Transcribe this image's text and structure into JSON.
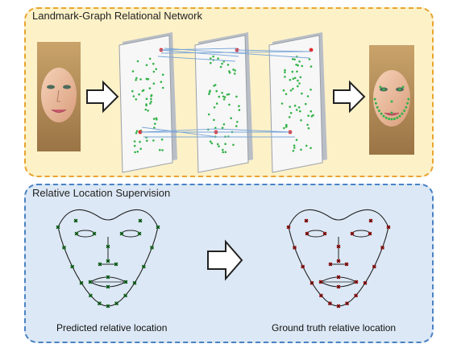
{
  "top_panel": {
    "title": "Landmark-Graph Relational Network"
  },
  "bottom_panel": {
    "title": "Relative Location Supervision",
    "predicted_caption": "Predicted relative location",
    "ground_truth_caption": "Ground truth relative location"
  },
  "colors": {
    "top_fill": "#fdf1c8",
    "top_border": "#e9a42e",
    "bottom_fill": "#dce8f5",
    "bottom_border": "#4a82c4",
    "predicted_points": "#35b34a",
    "ground_truth_points": "#e62a2a",
    "graph_edges": "#7aa6d8",
    "card_face": "#f7f7f7"
  },
  "icons": [
    "face-photo-input",
    "face-photo-output",
    "arrow-right-icon",
    "graph-layer-card"
  ]
}
